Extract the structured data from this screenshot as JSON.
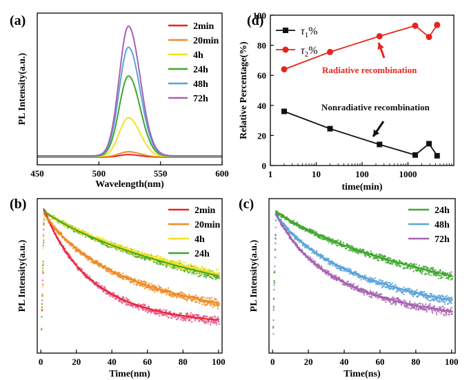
{
  "colors": {
    "red": "#e8231c",
    "orange": "#ef8a23",
    "yellow": "#f2e21e",
    "green": "#3da62c",
    "blue": "#5aa3d9",
    "purple": "#a661b0",
    "black": "#111111",
    "pink_scatter": "#e64c8a"
  },
  "chart_data": [
    {
      "id": "a",
      "panel_label": "(a)",
      "type": "line",
      "xlabel": "Wavelength(nm)",
      "ylabel": "PL Intensity(a.u.)",
      "xlim": [
        450,
        600
      ],
      "xticks": [
        450,
        500,
        550,
        600
      ],
      "yticks_shown": false,
      "legend_position": "top-right",
      "peak_nm": 524,
      "series": [
        {
          "name": "2min",
          "color_key": "red",
          "peak_height": 0.02
        },
        {
          "name": "20min",
          "color_key": "orange",
          "peak_height": 0.04
        },
        {
          "name": "4h",
          "color_key": "yellow",
          "peak_height": 0.3
        },
        {
          "name": "24h",
          "color_key": "green",
          "peak_height": 0.62
        },
        {
          "name": "48h",
          "color_key": "blue",
          "peak_height": 0.84
        },
        {
          "name": "72h",
          "color_key": "purple",
          "peak_height": 1.0
        }
      ]
    },
    {
      "id": "d",
      "panel_label": "(d)",
      "type": "line",
      "xlabel": "time(min)",
      "ylabel": "Relative Percentage(%)",
      "xscale": "log",
      "xlim": [
        1,
        10000
      ],
      "xticks": [
        1,
        10,
        100,
        1000
      ],
      "ylim": [
        0,
        100
      ],
      "yticks": [
        0,
        20,
        40,
        60,
        80,
        100
      ],
      "legend_position": "top-left",
      "series": [
        {
          "name": "τ1%",
          "label_main": "τ",
          "label_sub": "1",
          "label_suffix": "%",
          "color_key": "black",
          "marker": "square",
          "x": [
            2,
            20,
            240,
            1440,
            2880,
            4320
          ],
          "y": [
            36,
            24.5,
            14,
            7,
            14.5,
            6.5
          ]
        },
        {
          "name": "τ2%",
          "label_main": "τ",
          "label_sub": "2",
          "label_suffix": "%",
          "color_key": "red",
          "marker": "circle",
          "x": [
            2,
            20,
            240,
            1440,
            2880,
            4320
          ],
          "y": [
            64,
            75.5,
            86,
            93,
            85.5,
            93.5
          ]
        }
      ],
      "annotations": [
        {
          "text": "Radiative recombination",
          "color_key": "red"
        },
        {
          "text": "Nonradiative recombination",
          "color_key": "black"
        }
      ]
    },
    {
      "id": "b",
      "panel_label": "(b)",
      "type": "scatter",
      "xlabel": "Time(nm)",
      "ylabel": "PL Intensity(a.u.)",
      "xlim": [
        -2,
        102
      ],
      "xticks": [
        0,
        20,
        40,
        60,
        80,
        100
      ],
      "yticks_shown": false,
      "legend_position": "top-right",
      "series": [
        {
          "name": "2min",
          "color_key": "red",
          "scatter_color_key": "pink_scatter",
          "end_level": 0.07
        },
        {
          "name": "20min",
          "color_key": "orange",
          "end_level": 0.25
        },
        {
          "name": "4h",
          "color_key": "yellow",
          "end_level": 0.48
        },
        {
          "name": "24h",
          "color_key": "green",
          "end_level": 0.46
        }
      ]
    },
    {
      "id": "c",
      "panel_label": "(c)",
      "type": "scatter",
      "xlabel": "Time(ns)",
      "ylabel": "PL Intensity(a.u.)",
      "xlim": [
        -2,
        102
      ],
      "xticks": [
        0,
        20,
        40,
        60,
        80,
        100
      ],
      "yticks_shown": false,
      "legend_position": "top-right",
      "series": [
        {
          "name": "24h",
          "color_key": "green",
          "end_level": 0.46
        },
        {
          "name": "48h",
          "color_key": "blue",
          "end_level": 0.28
        },
        {
          "name": "72h",
          "color_key": "purple",
          "end_level": 0.18
        }
      ]
    }
  ]
}
